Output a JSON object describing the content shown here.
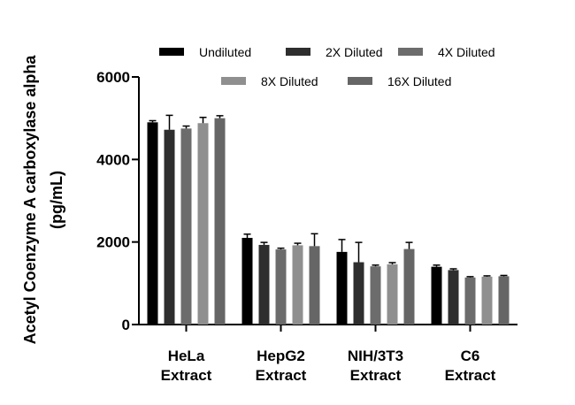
{
  "chart_data": {
    "type": "bar",
    "ylabel_line1": "Acetyl Coenzyme A carboxylase alpha",
    "ylabel_line2": "(pg/mL)",
    "ylim": [
      0,
      6000
    ],
    "yticks": [
      "0",
      "2000",
      "4000",
      "6000"
    ],
    "categories": [
      [
        "HeLa",
        "Extract"
      ],
      [
        "HepG2",
        "Extract"
      ],
      [
        "NIH/3T3",
        "Extract"
      ],
      [
        "C6",
        "Extract"
      ]
    ],
    "series": [
      {
        "name": "Undiluted",
        "color": "#000000",
        "values": [
          4900,
          2100,
          1760,
          1400
        ],
        "errors": [
          40,
          90,
          300,
          40
        ]
      },
      {
        "name": "2X Diluted",
        "color": "#2e2e2e",
        "values": [
          4720,
          1930,
          1510,
          1320
        ],
        "errors": [
          350,
          60,
          480,
          30
        ]
      },
      {
        "name": "4X Diluted",
        "color": "#6c6c6c",
        "values": [
          4750,
          1820,
          1410,
          1140
        ],
        "errors": [
          60,
          30,
          30,
          20
        ]
      },
      {
        "name": "8X Diluted",
        "color": "#8f8f8f",
        "values": [
          4880,
          1920,
          1460,
          1160
        ],
        "errors": [
          140,
          50,
          40,
          20
        ]
      },
      {
        "name": "16X Diluted",
        "color": "#666666",
        "values": [
          5000,
          1900,
          1830,
          1170
        ],
        "errors": [
          60,
          300,
          160,
          20
        ]
      }
    ],
    "legend_placement": "top",
    "grid": false
  }
}
